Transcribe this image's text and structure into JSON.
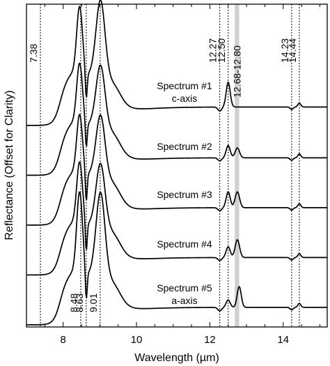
{
  "chart_data": {
    "type": "line",
    "title": "",
    "xlabel": "Wavelength (µm)",
    "ylabel": "Reflectance (Offset for Clarity)",
    "xlim": [
      7.0,
      15.2
    ],
    "xticks": [
      8,
      10,
      12,
      14
    ],
    "grid": false,
    "markers": [
      {
        "x": 7.38,
        "label": "7.38",
        "label_pos": "top"
      },
      {
        "x": 8.48,
        "label": "8.48",
        "label_pos": "bottom"
      },
      {
        "x": 8.63,
        "label": "8.63",
        "label_pos": "bottom"
      },
      {
        "x": 9.01,
        "label": "9.01",
        "label_pos": "bottom"
      },
      {
        "x": 12.27,
        "label": "12.27",
        "label_pos": "top"
      },
      {
        "x": 12.5,
        "label": "12.50",
        "label_pos": "top"
      },
      {
        "x": 14.23,
        "label": "14.23",
        "label_pos": "top"
      },
      {
        "x": 14.44,
        "label": "14.44",
        "label_pos": "top"
      }
    ],
    "band": {
      "x0": 12.68,
      "x1": 12.8,
      "label": "12.68-12.80",
      "color": "#d0d0d0"
    },
    "series": [
      {
        "label_lines": [
          "Spectrum #1",
          "c-axis"
        ],
        "offset": 4.0,
        "peaks": {
          "p1": 1.42,
          "p2": 1.56,
          "d": 0.55,
          "rp": 0.5,
          "s1": 0.0,
          "s2": 0.0,
          "trough": -0.08,
          "tail": 0.07
        }
      },
      {
        "label_lines": [
          "Spectrum #2"
        ],
        "offset": 3.0,
        "peaks": {
          "p1": 1.28,
          "p2": 1.25,
          "d": 0.52,
          "rp": 0.25,
          "s1": 0.2,
          "s2": 0.0,
          "trough": -0.06,
          "tail": 0.05
        }
      },
      {
        "label_lines": [
          "Spectrum #3"
        ],
        "offset": 2.0,
        "peaks": {
          "p1": 1.25,
          "p2": 1.25,
          "d": 0.6,
          "rp": 0.32,
          "s1": 0.32,
          "s2": 0.0,
          "trough": -0.06,
          "tail": 0.05
        }
      },
      {
        "label_lines": [
          "Spectrum #4"
        ],
        "offset": 1.0,
        "peaks": {
          "p1": 1.3,
          "p2": 1.28,
          "d": 0.6,
          "rp": 0.22,
          "s1": 0.36,
          "s2": 0.0,
          "trough": -0.06,
          "tail": 0.05
        }
      },
      {
        "label_lines": [
          "Spectrum #5",
          "a-axis"
        ],
        "offset": 0.0,
        "peaks": {
          "p1": 1.7,
          "p2": 1.7,
          "d": 0.6,
          "rp": 0.15,
          "s1": 0.0,
          "s2": 0.42,
          "trough": -0.07,
          "tail": 0.05
        }
      }
    ]
  },
  "colors": {
    "line": "#000000",
    "band": "#d0d0d0",
    "background": "#ffffff"
  }
}
